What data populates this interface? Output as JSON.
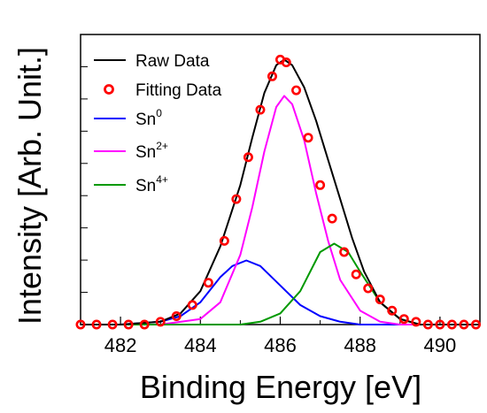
{
  "chart_data": {
    "type": "line",
    "xlabel": "Binding Energy [eV]",
    "ylabel": "Intensity [Arb. Unit.]",
    "xlim": [
      481,
      491
    ],
    "ylim": [
      0,
      1.04
    ],
    "x_ticks": [
      482,
      484,
      486,
      488,
      490
    ],
    "x_tick_labels": [
      "482",
      "484",
      "486",
      "488",
      "490"
    ],
    "y_tick_labels_shown": false,
    "grid": false,
    "legend_position": "top-left",
    "legend": [
      {
        "key": "raw",
        "label": "Raw Data",
        "base": "Raw Data",
        "sup": ""
      },
      {
        "key": "fit",
        "label": "Fitting Data",
        "base": "Fitting Data",
        "sup": ""
      },
      {
        "key": "sn0",
        "label": "Sn0",
        "base": "Sn",
        "sup": "0"
      },
      {
        "key": "sn2",
        "label": "Sn2+",
        "base": "Sn",
        "sup": "2+"
      },
      {
        "key": "sn4",
        "label": "Sn4+",
        "base": "Sn",
        "sup": "4+"
      }
    ],
    "series": [
      {
        "key": "sn0",
        "name": "Sn0",
        "style": "line",
        "color": "#0000ff",
        "x": [
          481.0,
          482.0,
          483.0,
          483.5,
          484.0,
          484.5,
          484.8,
          485.15,
          485.5,
          486.0,
          486.5,
          487.0,
          487.5,
          488.0,
          489.0,
          491.0
        ],
        "y": [
          0.0,
          0.0,
          0.01,
          0.03,
          0.08,
          0.17,
          0.21,
          0.23,
          0.21,
          0.14,
          0.07,
          0.03,
          0.01,
          0.0,
          0.0,
          0.0
        ]
      },
      {
        "key": "sn2",
        "name": "Sn2+",
        "style": "line",
        "color": "#ff00ff",
        "x": [
          481.0,
          483.0,
          484.0,
          484.5,
          485.0,
          485.3,
          485.6,
          485.9,
          486.1,
          486.3,
          486.6,
          486.9,
          487.2,
          487.5,
          488.0,
          488.5,
          489.0,
          491.0
        ],
        "y": [
          0.0,
          0.0,
          0.02,
          0.08,
          0.25,
          0.42,
          0.62,
          0.78,
          0.82,
          0.79,
          0.66,
          0.47,
          0.3,
          0.16,
          0.05,
          0.01,
          0.0,
          0.0
        ]
      },
      {
        "key": "sn4",
        "name": "Sn4+",
        "style": "line",
        "color": "#009900",
        "x": [
          481.0,
          485.0,
          485.5,
          486.0,
          486.5,
          487.0,
          487.35,
          487.7,
          488.0,
          488.5,
          489.0,
          489.5,
          491.0
        ],
        "y": [
          0.0,
          0.0,
          0.01,
          0.04,
          0.12,
          0.26,
          0.29,
          0.26,
          0.19,
          0.08,
          0.02,
          0.0,
          0.0
        ]
      },
      {
        "key": "raw",
        "name": "Raw Data",
        "style": "line",
        "color": "#000000",
        "x": [
          481.0,
          482.0,
          483.0,
          483.5,
          484.0,
          484.5,
          485.0,
          485.3,
          485.6,
          485.9,
          486.1,
          486.3,
          486.6,
          486.9,
          487.2,
          487.5,
          487.8,
          488.1,
          488.5,
          489.0,
          489.5,
          490.0,
          491.0
        ],
        "y": [
          0.0,
          0.0,
          0.01,
          0.04,
          0.12,
          0.28,
          0.5,
          0.67,
          0.83,
          0.93,
          0.95,
          0.93,
          0.85,
          0.73,
          0.59,
          0.45,
          0.31,
          0.19,
          0.08,
          0.02,
          0.0,
          0.0,
          0.0
        ]
      },
      {
        "key": "fit",
        "name": "Fitting Data",
        "style": "markers",
        "color": "#ff0000",
        "x": [
          481.0,
          481.4,
          481.8,
          482.2,
          482.6,
          483.0,
          483.4,
          483.8,
          484.2,
          484.6,
          484.9,
          485.2,
          485.5,
          485.8,
          486.0,
          486.15,
          486.4,
          486.7,
          487.0,
          487.3,
          487.6,
          487.9,
          488.2,
          488.5,
          488.8,
          489.1,
          489.4,
          489.7,
          490.0,
          490.3,
          490.6,
          490.9
        ],
        "y": [
          0.0,
          0.0,
          0.0,
          0.0,
          0.0,
          0.01,
          0.03,
          0.07,
          0.15,
          0.3,
          0.45,
          0.6,
          0.77,
          0.89,
          0.95,
          0.94,
          0.84,
          0.67,
          0.5,
          0.38,
          0.26,
          0.18,
          0.13,
          0.09,
          0.05,
          0.02,
          0.01,
          0.0,
          0.0,
          0.0,
          0.0,
          0.0
        ]
      }
    ]
  }
}
